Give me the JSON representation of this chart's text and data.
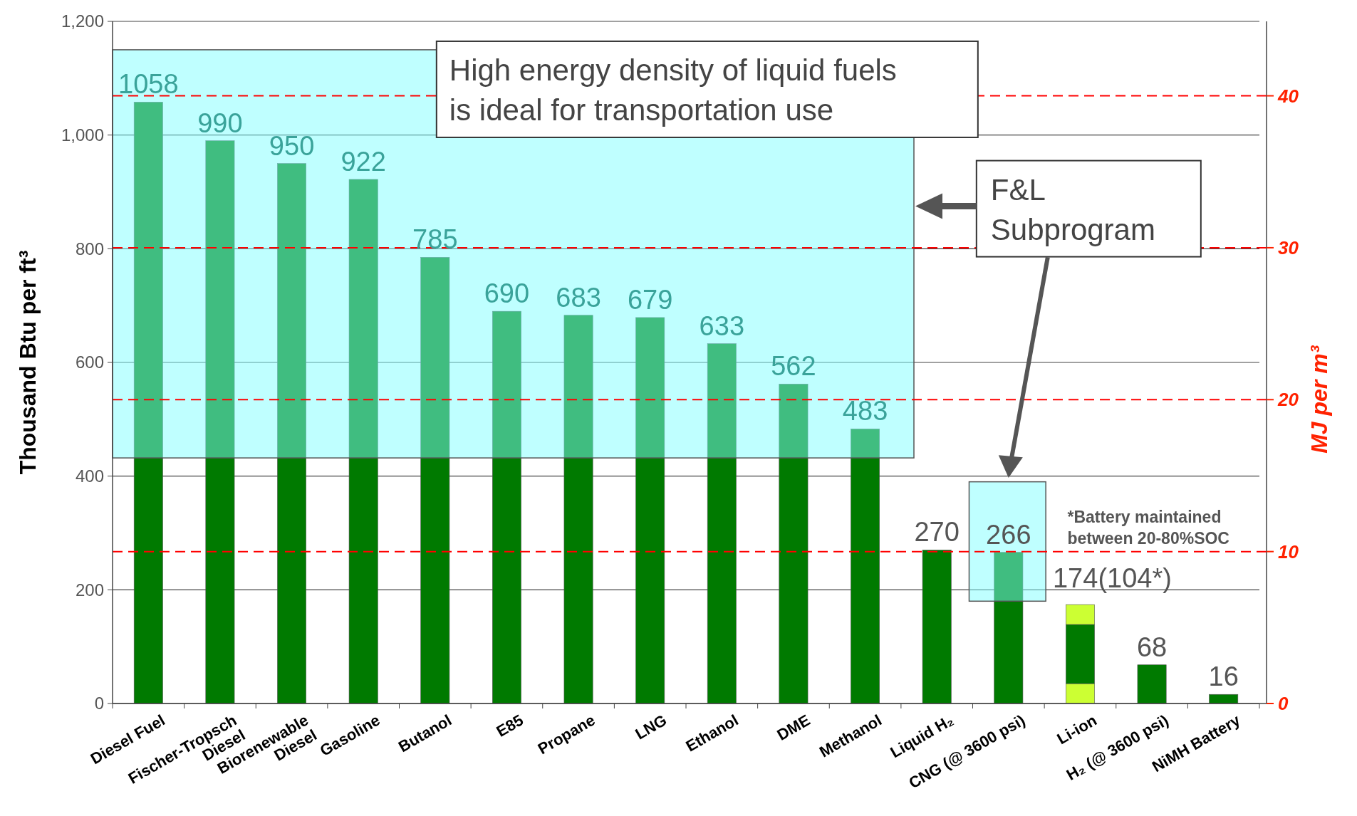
{
  "chart_data": {
    "type": "bar",
    "stacked": true,
    "ylabel": "Thousand Btu per ft³",
    "y2label": "MJ per m³",
    "categories": [
      "Diesel Fuel",
      "Fischer-Tropsch\nDiesel",
      "Biorenewable\nDiesel",
      "Gasoline",
      "Butanol",
      "E85",
      "Propane",
      "LNG",
      "Ethanol",
      "DME",
      "Methanol",
      "Liquid H₂",
      "CNG (@ 3600 psi)",
      "Li-ion",
      "H₂ (@ 3600 psi)",
      "NiMH Battery"
    ],
    "series": [
      {
        "color": "#ccff33",
        "values": [
          null,
          null,
          null,
          null,
          null,
          null,
          null,
          null,
          null,
          null,
          null,
          null,
          null,
          35,
          null,
          null
        ]
      },
      {
        "color": "#007a00",
        "values": [
          1058,
          990,
          950,
          922,
          785,
          690,
          683,
          679,
          633,
          562,
          483,
          270,
          266,
          104,
          68,
          16
        ]
      },
      {
        "color": "#ccff33",
        "values": [
          null,
          null,
          null,
          null,
          null,
          null,
          null,
          null,
          null,
          null,
          null,
          null,
          null,
          35,
          null,
          null
        ]
      }
    ],
    "totals": [
      "1058",
      "990",
      "950",
      "922",
      "785",
      "690",
      "683",
      "679",
      "633",
      "562",
      "483",
      "270",
      "266",
      "174(104*)",
      "68",
      "16"
    ],
    "ylim": [
      0,
      1200
    ],
    "yticks": [
      0,
      200,
      400,
      600,
      800,
      {
        "value": 1000,
        "label": "1,000"
      },
      {
        "value": 1200,
        "label": "1,200"
      }
    ],
    "y2lim": [
      0,
      44.9
    ],
    "y2ticks": [
      0,
      10,
      20,
      30,
      40
    ],
    "grid": true,
    "annotations": [
      "High energy density of liquid fuels is ideal for transportation use",
      "F&L Subprogram",
      "*Battery maintained between 20-80%SOC"
    ]
  }
}
